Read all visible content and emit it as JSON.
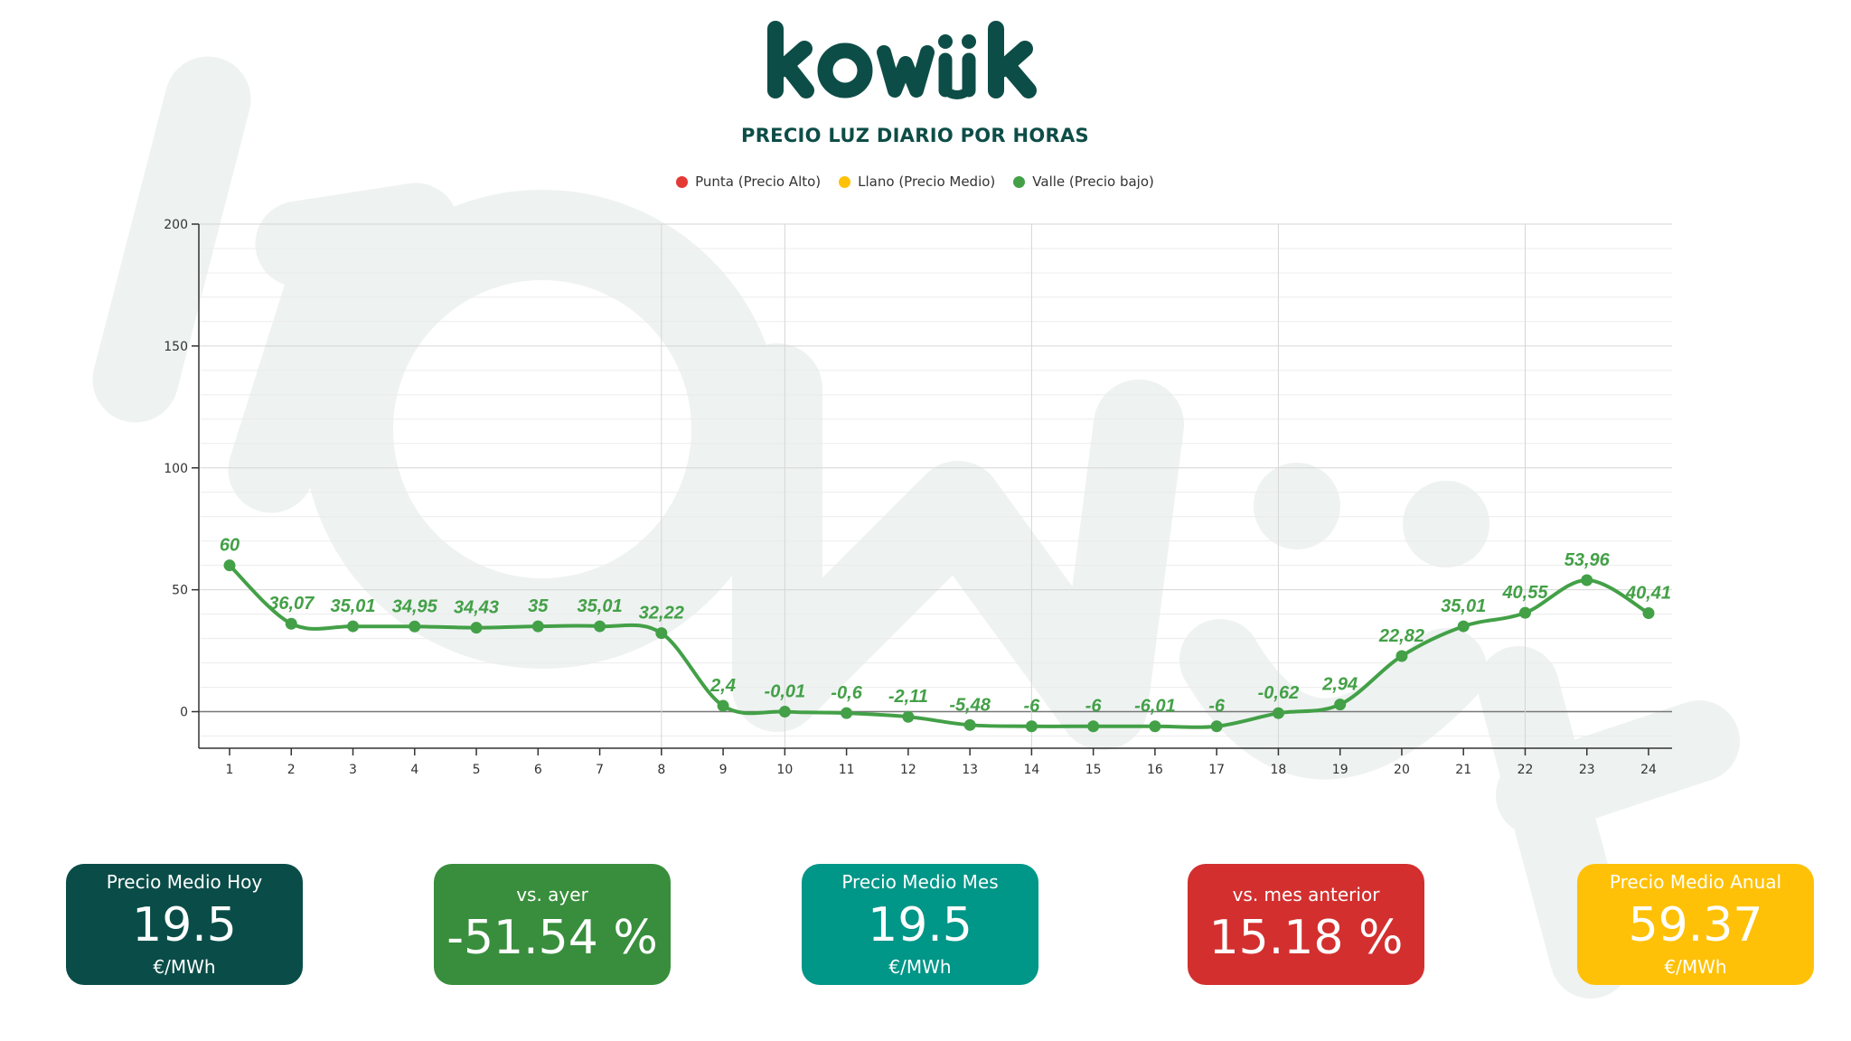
{
  "brand": {
    "name": "kowik",
    "color": "#0d4d47"
  },
  "title": "PRECIO LUZ DIARIO POR HORAS",
  "legend": [
    {
      "label": "Punta (Precio Alto)",
      "color": "#e53935"
    },
    {
      "label": "Llano (Precio Medio)",
      "color": "#ffc107"
    },
    {
      "label": "Valle (Precio bajo)",
      "color": "#43a047"
    }
  ],
  "chart_data": {
    "type": "line",
    "title": "PRECIO LUZ DIARIO POR HORAS",
    "xlabel": "",
    "ylabel": "",
    "x": [
      1,
      2,
      3,
      4,
      5,
      6,
      7,
      8,
      9,
      10,
      11,
      12,
      13,
      14,
      15,
      16,
      17,
      18,
      19,
      20,
      21,
      22,
      23,
      24
    ],
    "series": [
      {
        "name": "Valle (Precio bajo)",
        "color": "#43a047",
        "values": [
          60,
          36.07,
          35.01,
          34.95,
          34.43,
          35,
          35.01,
          32.22,
          2.4,
          -0.01,
          -0.6,
          -2.11,
          -5.48,
          -6,
          -6,
          -6.01,
          -6,
          -0.62,
          2.94,
          22.82,
          35.01,
          40.55,
          53.96,
          40.41
        ],
        "labels": [
          "60",
          "36,07",
          "35,01",
          "34,95",
          "34,43",
          "35",
          "35,01",
          "32,22",
          "2,4",
          "-0,01",
          "-0,6",
          "-2,11",
          "-5,48",
          "-6",
          "-6",
          "-6,01",
          "-6",
          "-0,62",
          "2,94",
          "22,82",
          "35,01",
          "40,55",
          "53,96",
          "40,41"
        ]
      }
    ],
    "ylim": [
      -15,
      200
    ],
    "yticks": [
      0,
      50,
      100,
      150,
      200
    ],
    "grid": true,
    "legend_position": "top-center"
  },
  "cards": [
    {
      "id": "hoy",
      "title": "Precio Medio Hoy",
      "value": "19.5",
      "unit": "€/MWh",
      "color": "#0a4d48"
    },
    {
      "id": "ayer",
      "title": "vs. ayer",
      "value": "-51.54 %",
      "unit": "",
      "color": "#388e3c"
    },
    {
      "id": "mes",
      "title": "Precio Medio Mes",
      "value": "19.5",
      "unit": "€/MWh",
      "color": "#009688"
    },
    {
      "id": "mes-anterior",
      "title": "vs. mes anterior",
      "value": "15.18 %",
      "unit": "",
      "color": "#d32f2f"
    },
    {
      "id": "anual",
      "title": "Precio Medio Anual",
      "value": "59.37",
      "unit": "€/MWh",
      "color": "#ffc107"
    }
  ]
}
